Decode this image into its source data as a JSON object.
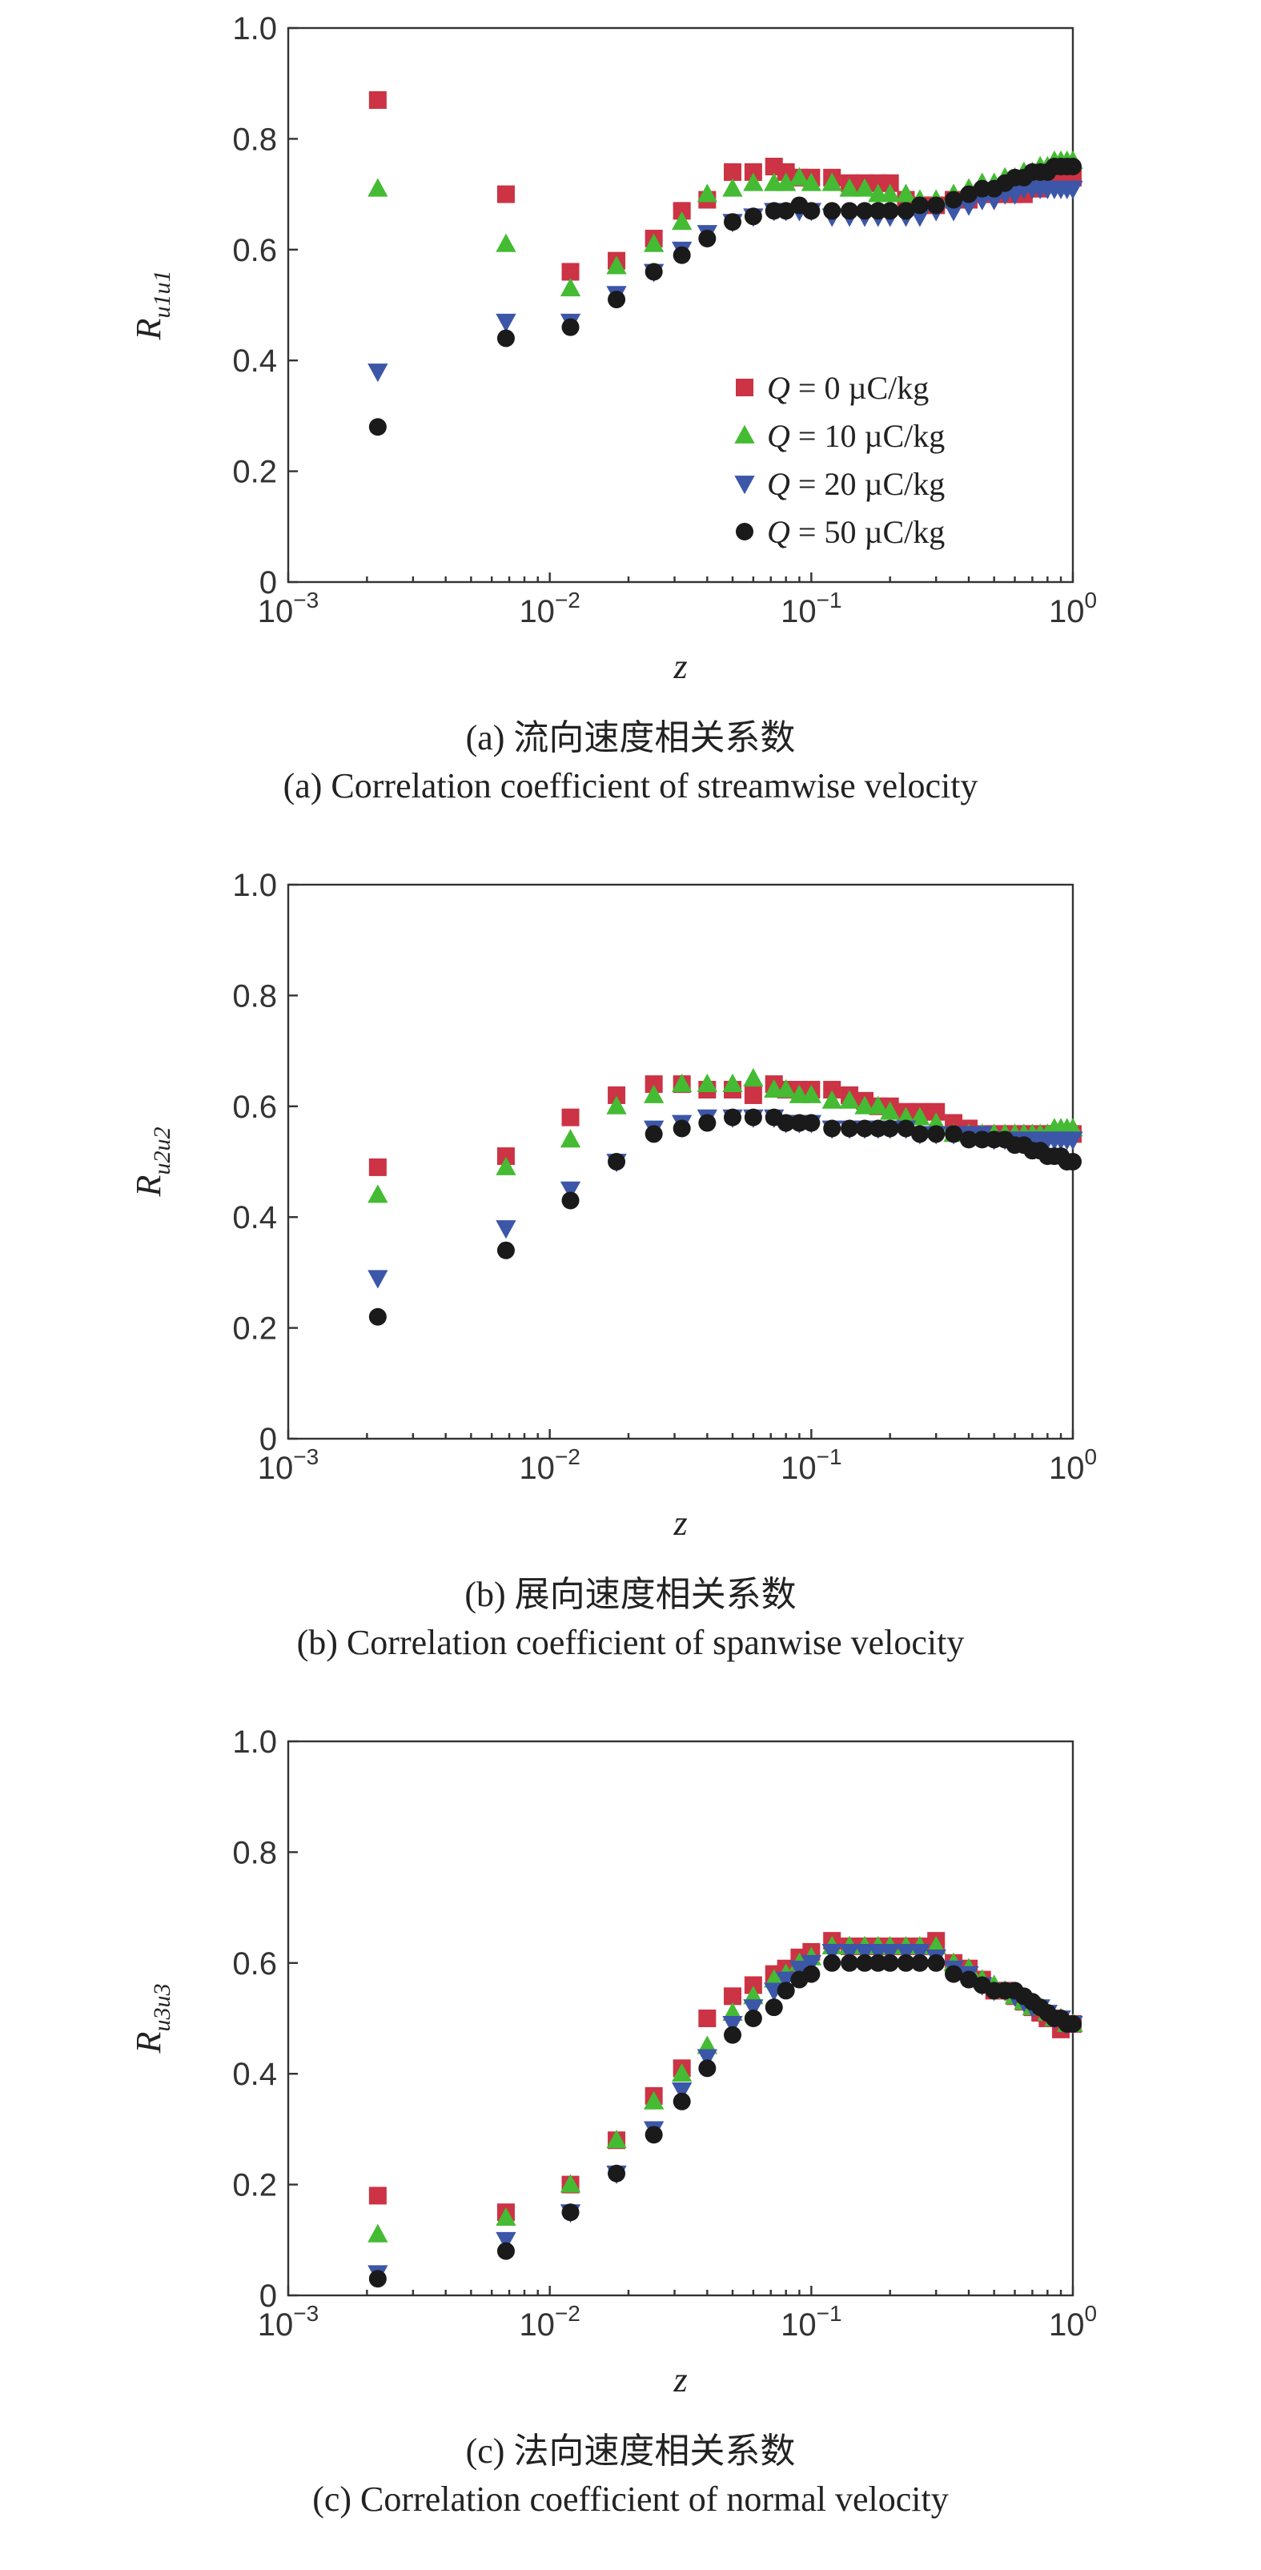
{
  "series_styles": [
    {
      "name": "Q = 0 µC/kg",
      "color": "#cc3344",
      "marker": "square"
    },
    {
      "name": "Q = 10 µC/kg",
      "color": "#44bb33",
      "marker": "triangle-up"
    },
    {
      "name": "Q = 20 µC/kg",
      "color": "#3c56a8",
      "marker": "triangle-down"
    },
    {
      "name": "Q = 50 µC/kg",
      "color": "#1a1a1a",
      "marker": "circle"
    }
  ],
  "legend": [
    {
      "q": "Q",
      "rest": " = 0 µC/kg"
    },
    {
      "q": "Q",
      "rest": " = 10 µC/kg"
    },
    {
      "q": "Q",
      "rest": " = 20 µC/kg"
    },
    {
      "q": "Q",
      "rest": " = 50 µC/kg"
    }
  ],
  "panels": [
    {
      "caption_cn": "(a) 流向速度相关系数",
      "caption_en": "(a) Correlation coefficient of streamwise velocity",
      "ylabel_main": "R",
      "ylabel_sub": "u1u1",
      "xlabel": "z"
    },
    {
      "caption_cn": "(b) 展向速度相关系数",
      "caption_en": "(b) Correlation coefficient of spanwise velocity",
      "ylabel_main": "R",
      "ylabel_sub": "u2u2",
      "xlabel": "z"
    },
    {
      "caption_cn": "(c) 法向速度相关系数",
      "caption_en": "(c) Correlation coefficient of normal velocity",
      "ylabel_main": "R",
      "ylabel_sub": "u3u3",
      "xlabel": "z"
    }
  ],
  "chart_data": [
    {
      "type": "scatter",
      "xscale": "log",
      "xlim": [
        0.001,
        1
      ],
      "ylim": [
        0,
        1.0
      ],
      "xticks": [
        "10^-3",
        "10^-2",
        "10^-1",
        "10^0"
      ],
      "yticks": [
        "0",
        "0.2",
        "0.4",
        "0.6",
        "0.8",
        "1.0"
      ],
      "xlabel": "z",
      "ylabel": "Ru1u1",
      "legend_position": "lower-right",
      "x": [
        0.0022,
        0.0068,
        0.012,
        0.018,
        0.025,
        0.032,
        0.04,
        0.05,
        0.06,
        0.072,
        0.08,
        0.09,
        0.1,
        0.12,
        0.14,
        0.16,
        0.18,
        0.2,
        0.23,
        0.26,
        0.3,
        0.35,
        0.4,
        0.45,
        0.5,
        0.55,
        0.6,
        0.65,
        0.7,
        0.75,
        0.8,
        0.85,
        0.9,
        0.95,
        1.0
      ],
      "series": [
        {
          "name": "Q = 0 µC/kg",
          "values": [
            0.87,
            0.7,
            0.56,
            0.58,
            0.62,
            0.67,
            0.69,
            0.74,
            0.74,
            0.75,
            0.74,
            0.73,
            0.73,
            0.73,
            0.72,
            0.72,
            0.72,
            0.72,
            0.69,
            0.68,
            0.68,
            0.69,
            0.69,
            0.7,
            0.7,
            0.7,
            0.7,
            0.7,
            0.71,
            0.71,
            0.72,
            0.73,
            0.73,
            0.73,
            0.73
          ]
        },
        {
          "name": "Q = 10 µC/kg",
          "values": [
            0.71,
            0.61,
            0.53,
            0.57,
            0.61,
            0.65,
            0.7,
            0.71,
            0.72,
            0.72,
            0.72,
            0.73,
            0.72,
            0.72,
            0.71,
            0.71,
            0.7,
            0.7,
            0.7,
            0.69,
            0.69,
            0.7,
            0.71,
            0.72,
            0.72,
            0.73,
            0.73,
            0.74,
            0.74,
            0.75,
            0.75,
            0.76,
            0.76,
            0.76,
            0.76
          ]
        },
        {
          "name": "Q = 20 µC/kg",
          "values": [
            0.38,
            0.47,
            0.47,
            0.52,
            0.56,
            0.6,
            0.63,
            0.65,
            0.66,
            0.67,
            0.67,
            0.67,
            0.67,
            0.66,
            0.66,
            0.66,
            0.66,
            0.66,
            0.66,
            0.66,
            0.67,
            0.67,
            0.68,
            0.69,
            0.69,
            0.7,
            0.7,
            0.71,
            0.71,
            0.71,
            0.71,
            0.71,
            0.71,
            0.71,
            0.71
          ]
        },
        {
          "name": "Q = 50 µC/kg",
          "values": [
            0.28,
            0.44,
            0.46,
            0.51,
            0.56,
            0.59,
            0.62,
            0.65,
            0.66,
            0.67,
            0.67,
            0.68,
            0.67,
            0.67,
            0.67,
            0.67,
            0.67,
            0.67,
            0.67,
            0.68,
            0.68,
            0.69,
            0.7,
            0.71,
            0.71,
            0.72,
            0.73,
            0.73,
            0.74,
            0.74,
            0.74,
            0.75,
            0.75,
            0.75,
            0.75
          ]
        }
      ]
    },
    {
      "type": "scatter",
      "xscale": "log",
      "xlim": [
        0.001,
        1
      ],
      "ylim": [
        0,
        1.0
      ],
      "xticks": [
        "10^-3",
        "10^-2",
        "10^-1",
        "10^0"
      ],
      "yticks": [
        "0",
        "0.2",
        "0.4",
        "0.6",
        "0.8",
        "1.0"
      ],
      "xlabel": "z",
      "ylabel": "Ru2u2",
      "x": [
        0.0022,
        0.0068,
        0.012,
        0.018,
        0.025,
        0.032,
        0.04,
        0.05,
        0.06,
        0.072,
        0.08,
        0.09,
        0.1,
        0.12,
        0.14,
        0.16,
        0.18,
        0.2,
        0.23,
        0.26,
        0.3,
        0.35,
        0.4,
        0.45,
        0.5,
        0.55,
        0.6,
        0.65,
        0.7,
        0.75,
        0.8,
        0.85,
        0.9,
        0.95,
        1.0
      ],
      "series": [
        {
          "name": "Q = 0 µC/kg",
          "values": [
            0.49,
            0.51,
            0.58,
            0.62,
            0.64,
            0.64,
            0.63,
            0.63,
            0.62,
            0.64,
            0.63,
            0.63,
            0.63,
            0.63,
            0.62,
            0.61,
            0.6,
            0.6,
            0.59,
            0.59,
            0.59,
            0.57,
            0.56,
            0.55,
            0.55,
            0.55,
            0.55,
            0.55,
            0.55,
            0.55,
            0.55,
            0.55,
            0.55,
            0.55,
            0.55
          ]
        },
        {
          "name": "Q = 10 µC/kg",
          "values": [
            0.44,
            0.49,
            0.54,
            0.6,
            0.62,
            0.64,
            0.64,
            0.64,
            0.65,
            0.63,
            0.63,
            0.62,
            0.62,
            0.61,
            0.61,
            0.6,
            0.6,
            0.59,
            0.58,
            0.58,
            0.57,
            0.55,
            0.55,
            0.55,
            0.55,
            0.55,
            0.55,
            0.55,
            0.55,
            0.55,
            0.55,
            0.56,
            0.56,
            0.56,
            0.56
          ]
        },
        {
          "name": "Q = 20 µC/kg",
          "values": [
            0.29,
            0.38,
            0.45,
            0.5,
            0.56,
            0.57,
            0.58,
            0.58,
            0.58,
            0.58,
            0.57,
            0.57,
            0.57,
            0.56,
            0.56,
            0.56,
            0.56,
            0.56,
            0.56,
            0.55,
            0.55,
            0.55,
            0.55,
            0.55,
            0.54,
            0.54,
            0.54,
            0.54,
            0.54,
            0.54,
            0.54,
            0.54,
            0.54,
            0.54,
            0.54
          ]
        },
        {
          "name": "Q = 50 µC/kg",
          "values": [
            0.22,
            0.34,
            0.43,
            0.5,
            0.55,
            0.56,
            0.57,
            0.58,
            0.58,
            0.58,
            0.57,
            0.57,
            0.57,
            0.56,
            0.56,
            0.56,
            0.56,
            0.56,
            0.56,
            0.55,
            0.55,
            0.55,
            0.54,
            0.54,
            0.54,
            0.54,
            0.53,
            0.53,
            0.52,
            0.52,
            0.51,
            0.51,
            0.51,
            0.5,
            0.5
          ]
        }
      ]
    },
    {
      "type": "scatter",
      "xscale": "log",
      "xlim": [
        0.001,
        1
      ],
      "ylim": [
        0,
        1.0
      ],
      "xticks": [
        "10^-3",
        "10^-2",
        "10^-1",
        "10^0"
      ],
      "yticks": [
        "0",
        "0.2",
        "0.4",
        "0.6",
        "0.8",
        "1.0"
      ],
      "xlabel": "z",
      "ylabel": "Ru3u3",
      "x": [
        0.0022,
        0.0068,
        0.012,
        0.018,
        0.025,
        0.032,
        0.04,
        0.05,
        0.06,
        0.072,
        0.08,
        0.09,
        0.1,
        0.12,
        0.14,
        0.16,
        0.18,
        0.2,
        0.23,
        0.26,
        0.3,
        0.35,
        0.4,
        0.45,
        0.5,
        0.55,
        0.6,
        0.65,
        0.7,
        0.75,
        0.8,
        0.85,
        0.9,
        0.95,
        1.0
      ],
      "series": [
        {
          "name": "Q = 0 µC/kg",
          "values": [
            0.18,
            0.15,
            0.2,
            0.28,
            0.36,
            0.41,
            0.5,
            0.54,
            0.56,
            0.58,
            0.59,
            0.61,
            0.62,
            0.64,
            0.63,
            0.63,
            0.63,
            0.63,
            0.63,
            0.63,
            0.64,
            0.6,
            0.59,
            0.57,
            0.55,
            0.55,
            0.54,
            0.53,
            0.52,
            0.51,
            0.5,
            0.5,
            0.48,
            0.49,
            0.49
          ]
        },
        {
          "name": "Q = 10 µC/kg",
          "values": [
            0.11,
            0.14,
            0.2,
            0.28,
            0.35,
            0.4,
            0.45,
            0.51,
            0.54,
            0.57,
            0.58,
            0.6,
            0.61,
            0.63,
            0.63,
            0.63,
            0.63,
            0.63,
            0.63,
            0.63,
            0.63,
            0.6,
            0.59,
            0.57,
            0.56,
            0.55,
            0.54,
            0.53,
            0.52,
            0.52,
            0.51,
            0.5,
            0.5,
            0.49,
            0.49
          ]
        },
        {
          "name": "Q = 20 µC/kg",
          "values": [
            0.04,
            0.1,
            0.15,
            0.22,
            0.3,
            0.37,
            0.43,
            0.49,
            0.52,
            0.55,
            0.57,
            0.59,
            0.6,
            0.62,
            0.62,
            0.62,
            0.62,
            0.62,
            0.62,
            0.62,
            0.61,
            0.59,
            0.58,
            0.56,
            0.55,
            0.55,
            0.54,
            0.53,
            0.52,
            0.52,
            0.51,
            0.5,
            0.5,
            0.49,
            0.49
          ]
        },
        {
          "name": "Q = 50 µC/kg",
          "values": [
            0.03,
            0.08,
            0.15,
            0.22,
            0.29,
            0.35,
            0.41,
            0.47,
            0.5,
            0.52,
            0.55,
            0.57,
            0.58,
            0.6,
            0.6,
            0.6,
            0.6,
            0.6,
            0.6,
            0.6,
            0.6,
            0.58,
            0.57,
            0.56,
            0.55,
            0.55,
            0.55,
            0.54,
            0.53,
            0.52,
            0.51,
            0.5,
            0.5,
            0.49,
            0.49
          ]
        }
      ]
    }
  ]
}
